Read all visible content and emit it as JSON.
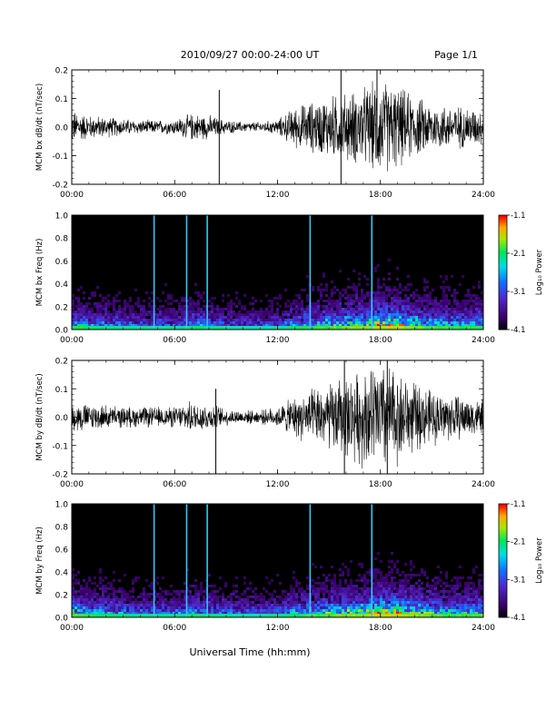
{
  "header": {
    "title": "2010/09/27  00:00-24:00 UT",
    "page": "Page 1/1"
  },
  "xlabel": "Universal Time (hh:mm)",
  "x_ticks": [
    "00:00",
    "06:00",
    "12:00",
    "18:00",
    "24:00"
  ],
  "colorbar": {
    "label": "Log₁₀ Power",
    "ticks": [
      "-1.1",
      "-2.1",
      "-3.1",
      "-4.1"
    ],
    "range": [
      -4.1,
      -1.1
    ]
  },
  "chart_data": [
    {
      "type": "line",
      "ylabel": "MCM bx dB/dt (nT/sec)",
      "xlim": [
        0,
        24
      ],
      "ylim": [
        -0.2,
        0.2
      ],
      "y_ticks": [
        "0.2",
        "0.1",
        "0.0",
        "-0.1",
        "-0.2"
      ],
      "x_ticks": [
        "00:00",
        "06:00",
        "12:00",
        "18:00",
        "24:00"
      ],
      "series": [
        {
          "x": [
            0,
            1,
            2,
            3,
            4,
            5,
            6,
            7,
            8,
            9,
            10,
            11,
            12,
            13,
            14,
            15,
            16,
            17,
            18,
            19,
            20,
            21,
            22,
            23,
            24
          ],
          "amplitude": [
            0.05,
            0.035,
            0.03,
            0.025,
            0.02,
            0.02,
            0.022,
            0.04,
            0.035,
            0.02,
            0.015,
            0.015,
            0.022,
            0.06,
            0.075,
            0.09,
            0.1,
            0.115,
            0.14,
            0.12,
            0.09,
            0.07,
            0.065,
            0.06,
            0.05
          ]
        }
      ],
      "spikes": [
        {
          "x": 8.6,
          "ymin": -0.2,
          "ymax": 0.13
        },
        {
          "x": 15.7,
          "ymin": -0.2,
          "ymax": 0.2
        },
        {
          "x": 17.8,
          "ymin": -0.11,
          "ymax": 0.2
        }
      ]
    },
    {
      "type": "heatmap",
      "ylabel": "MCM bx Freq (Hz)",
      "xlim": [
        0,
        24
      ],
      "ylim": [
        0,
        1.0
      ],
      "y_ticks": [
        "1.0",
        "0.8",
        "0.6",
        "0.4",
        "0.2",
        "0.0"
      ],
      "x_ticks": [
        "00:00",
        "06:00",
        "12:00",
        "18:00",
        "24:00"
      ],
      "activity": [
        0.45,
        0.4,
        0.35,
        0.32,
        0.3,
        0.3,
        0.3,
        0.4,
        0.35,
        0.3,
        0.28,
        0.28,
        0.3,
        0.4,
        0.45,
        0.5,
        0.55,
        0.6,
        0.7,
        0.65,
        0.55,
        0.5,
        0.45,
        0.45,
        0.45
      ],
      "vertical_lines": [
        4.8,
        6.7,
        7.9,
        13.9,
        17.5
      ]
    },
    {
      "type": "line",
      "ylabel": "MCM by dB/dt (nT/sec)",
      "xlim": [
        0,
        24
      ],
      "ylim": [
        -0.2,
        0.2
      ],
      "y_ticks": [
        "0.2",
        "0.1",
        "0.0",
        "-0.1",
        "-0.2"
      ],
      "x_ticks": [
        "00:00",
        "06:00",
        "12:00",
        "18:00",
        "24:00"
      ],
      "series": [
        {
          "x": [
            0,
            1,
            2,
            3,
            4,
            5,
            6,
            7,
            8,
            9,
            10,
            11,
            12,
            13,
            14,
            15,
            16,
            17,
            18,
            19,
            20,
            21,
            22,
            23,
            24
          ],
          "amplitude": [
            0.045,
            0.04,
            0.035,
            0.03,
            0.03,
            0.03,
            0.03,
            0.045,
            0.04,
            0.025,
            0.02,
            0.02,
            0.03,
            0.06,
            0.08,
            0.1,
            0.12,
            0.14,
            0.17,
            0.14,
            0.1,
            0.08,
            0.07,
            0.06,
            0.05
          ]
        }
      ],
      "spikes": [
        {
          "x": 8.4,
          "ymin": -0.2,
          "ymax": 0.1
        },
        {
          "x": 15.9,
          "ymin": -0.2,
          "ymax": 0.2
        },
        {
          "x": 18.4,
          "ymin": -0.2,
          "ymax": 0.2
        }
      ]
    },
    {
      "type": "heatmap",
      "ylabel": "MCM by Freq (Hz)",
      "xlim": [
        0,
        24
      ],
      "ylim": [
        0,
        1.0
      ],
      "y_ticks": [
        "1.0",
        "0.8",
        "0.6",
        "0.4",
        "0.2",
        "0.0"
      ],
      "x_ticks": [
        "00:00",
        "06:00",
        "12:00",
        "18:00",
        "24:00"
      ],
      "activity": [
        0.5,
        0.45,
        0.4,
        0.35,
        0.33,
        0.33,
        0.33,
        0.42,
        0.38,
        0.32,
        0.3,
        0.3,
        0.33,
        0.42,
        0.48,
        0.52,
        0.58,
        0.62,
        0.72,
        0.68,
        0.58,
        0.52,
        0.48,
        0.48,
        0.5
      ],
      "vertical_lines": [
        4.8,
        6.7,
        7.9,
        13.9,
        17.5
      ]
    }
  ]
}
